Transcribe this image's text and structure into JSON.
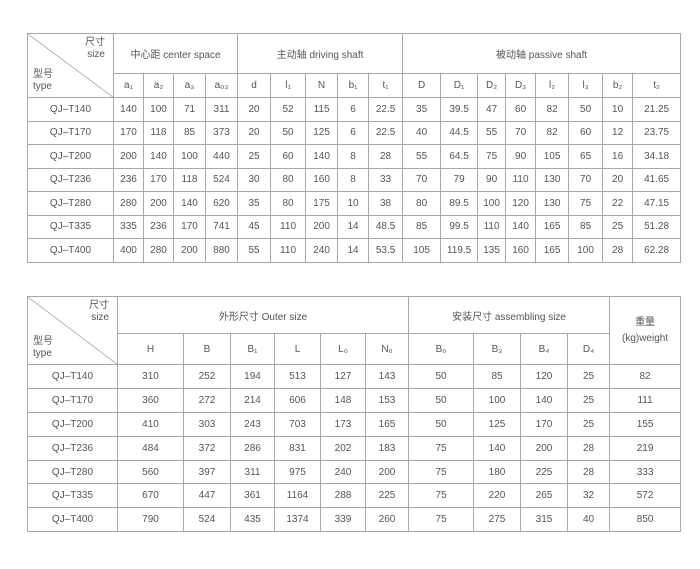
{
  "corner": {
    "size_cn": "尺寸",
    "size_en": "size",
    "type_cn": "型号",
    "type_en": "type"
  },
  "table1": {
    "groups": [
      "中心距  center space",
      "主动轴  driving shaft",
      "被动轴  passive shaft"
    ],
    "columns": [
      "a₁",
      "a₂",
      "a₃",
      "a₀₃",
      "d",
      "l₁",
      "N",
      "b₁",
      "t₁",
      "D",
      "D₁",
      "D₂",
      "D₃",
      "l₂",
      "l₃",
      "b₂",
      "t₂"
    ],
    "rows": [
      [
        "QJ–T140",
        "140",
        "100",
        "71",
        "311",
        "20",
        "52",
        "115",
        "6",
        "22.5",
        "35",
        "39.5",
        "47",
        "60",
        "82",
        "50",
        "10",
        "21.25"
      ],
      [
        "QJ–T170",
        "170",
        "118",
        "85",
        "373",
        "20",
        "50",
        "125",
        "6",
        "22.5",
        "40",
        "44.5",
        "55",
        "70",
        "82",
        "60",
        "12",
        "23.75"
      ],
      [
        "QJ–T200",
        "200",
        "140",
        "100",
        "440",
        "25",
        "60",
        "140",
        "8",
        "28",
        "55",
        "64.5",
        "75",
        "90",
        "105",
        "65",
        "16",
        "34.18"
      ],
      [
        "QJ–T236",
        "236",
        "170",
        "118",
        "524",
        "30",
        "80",
        "160",
        "8",
        "33",
        "70",
        "79",
        "90",
        "110",
        "130",
        "70",
        "20",
        "41.65"
      ],
      [
        "QJ–T280",
        "280",
        "200",
        "140",
        "620",
        "35",
        "80",
        "175",
        "10",
        "38",
        "80",
        "89.5",
        "100",
        "120",
        "130",
        "75",
        "22",
        "47.15"
      ],
      [
        "QJ–T335",
        "335",
        "236",
        "170",
        "741",
        "45",
        "110",
        "200",
        "14",
        "48.5",
        "85",
        "99.5",
        "110",
        "140",
        "165",
        "85",
        "25",
        "51.28"
      ],
      [
        "QJ–T400",
        "400",
        "280",
        "200",
        "880",
        "55",
        "110",
        "240",
        "14",
        "53.5",
        "105",
        "119.5",
        "135",
        "160",
        "165",
        "100",
        "28",
        "62.28"
      ]
    ]
  },
  "table2": {
    "groups": [
      "外形尺寸  Outer size",
      "安装尺寸  assembling size"
    ],
    "weight_cn": "重量",
    "weight_en": "(kg)weight",
    "columns": [
      "H",
      "B",
      "B₁",
      "L",
      "L₀",
      "N₀",
      "B₀",
      "B₃",
      "B₄",
      "D₄"
    ],
    "rows": [
      [
        "QJ–T140",
        "310",
        "252",
        "194",
        "513",
        "127",
        "143",
        "50",
        "85",
        "120",
        "25",
        "82"
      ],
      [
        "QJ–T170",
        "360",
        "272",
        "214",
        "606",
        "148",
        "153",
        "50",
        "100",
        "140",
        "25",
        "111"
      ],
      [
        "QJ–T200",
        "410",
        "303",
        "243",
        "703",
        "173",
        "165",
        "50",
        "125",
        "170",
        "25",
        "155"
      ],
      [
        "QJ–T236",
        "484",
        "372",
        "286",
        "831",
        "202",
        "183",
        "75",
        "140",
        "200",
        "28",
        "219"
      ],
      [
        "QJ–T280",
        "560",
        "397",
        "311",
        "975",
        "240",
        "200",
        "75",
        "180",
        "225",
        "28",
        "333"
      ],
      [
        "QJ–T335",
        "670",
        "447",
        "361",
        "1164",
        "288",
        "225",
        "75",
        "220",
        "265",
        "32",
        "572"
      ],
      [
        "QJ–T400",
        "790",
        "524",
        "435",
        "1374",
        "339",
        "260",
        "75",
        "275",
        "315",
        "40",
        "850"
      ]
    ]
  }
}
